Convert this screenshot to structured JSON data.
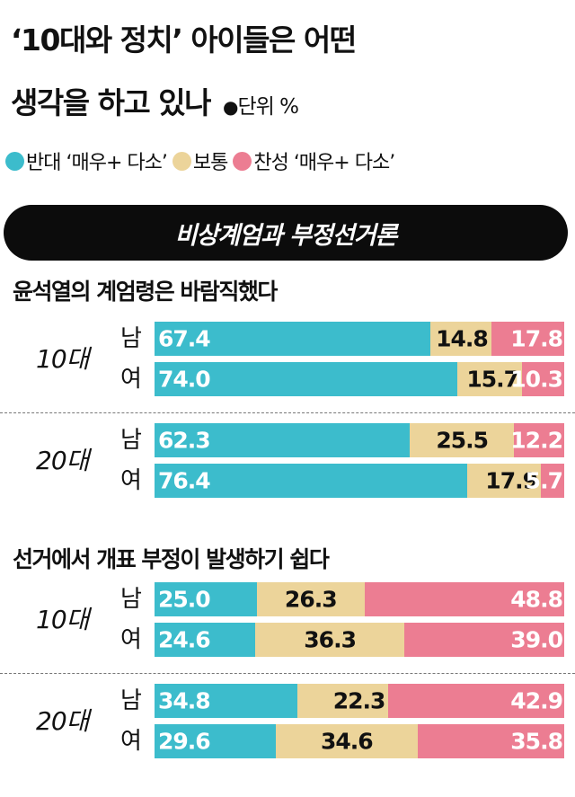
{
  "header": {
    "title_line1": "‘10대와 정치’ 아이들은 어떤",
    "title_line2": "생각을 하고 있나",
    "unit_dot": "●",
    "unit_label": "단위 %"
  },
  "legend": [
    {
      "label": "반대 ‘매우+ 다소’",
      "color": "#3cbccc"
    },
    {
      "label": "보통",
      "color": "#ecd49a"
    },
    {
      "label": "찬성 ‘매우+ 다소’",
      "color": "#ec7d92"
    }
  ],
  "banner": "비상계엄과 부정선거론",
  "chart_data": [
    {
      "type": "bar",
      "stacked": true,
      "orientation": "horizontal",
      "title": "윤석열의 계엄령은 바람직했다",
      "groups": [
        {
          "age": "10대",
          "rows": [
            {
              "sex": "남",
              "oppose": 67.4,
              "neutral": 14.8,
              "support": 17.8
            },
            {
              "sex": "여",
              "oppose": 74.0,
              "neutral": 15.7,
              "support": 10.3
            }
          ]
        },
        {
          "age": "20대",
          "rows": [
            {
              "sex": "남",
              "oppose": 62.3,
              "neutral": 25.5,
              "support": 12.2
            },
            {
              "sex": "여",
              "oppose": 76.4,
              "neutral": 17.9,
              "support": 5.7
            }
          ]
        }
      ]
    },
    {
      "type": "bar",
      "stacked": true,
      "orientation": "horizontal",
      "title": "선거에서 개표 부정이 발생하기 쉽다",
      "groups": [
        {
          "age": "10대",
          "rows": [
            {
              "sex": "남",
              "oppose": 25.0,
              "neutral": 26.3,
              "support": 48.8
            },
            {
              "sex": "여",
              "oppose": 24.6,
              "neutral": 36.3,
              "support": 39.0
            }
          ]
        },
        {
          "age": "20대",
          "rows": [
            {
              "sex": "남",
              "oppose": 34.8,
              "neutral": 22.3,
              "support": 42.9
            },
            {
              "sex": "여",
              "oppose": 29.6,
              "neutral": 34.6,
              "support": 35.8
            }
          ]
        }
      ]
    }
  ]
}
